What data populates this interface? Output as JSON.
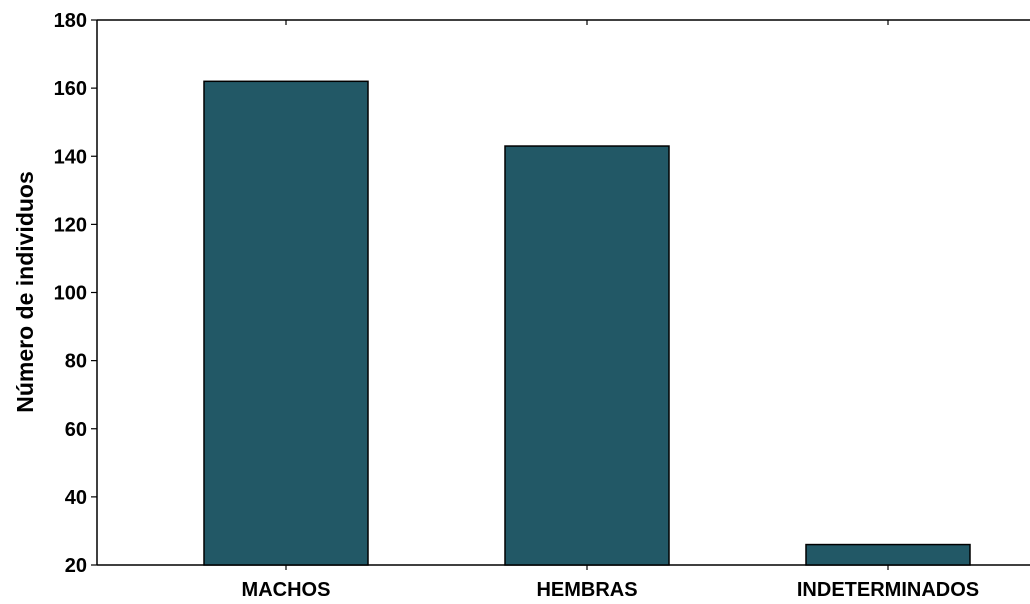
{
  "chart_data": {
    "type": "bar",
    "title": "",
    "xlabel": "",
    "ylabel": "Número de individuos",
    "categories": [
      "MACHOS",
      "HEMBRAS",
      "INDETERMINADOS"
    ],
    "values": [
      162,
      143,
      26
    ],
    "ylim": [
      20,
      180
    ],
    "yticks": [
      "20",
      "40",
      "60",
      "80",
      "100",
      "120",
      "140",
      "160",
      "180"
    ],
    "grid": false,
    "legend": "none",
    "bar_color": "#225866",
    "edge_color": "#000000"
  }
}
